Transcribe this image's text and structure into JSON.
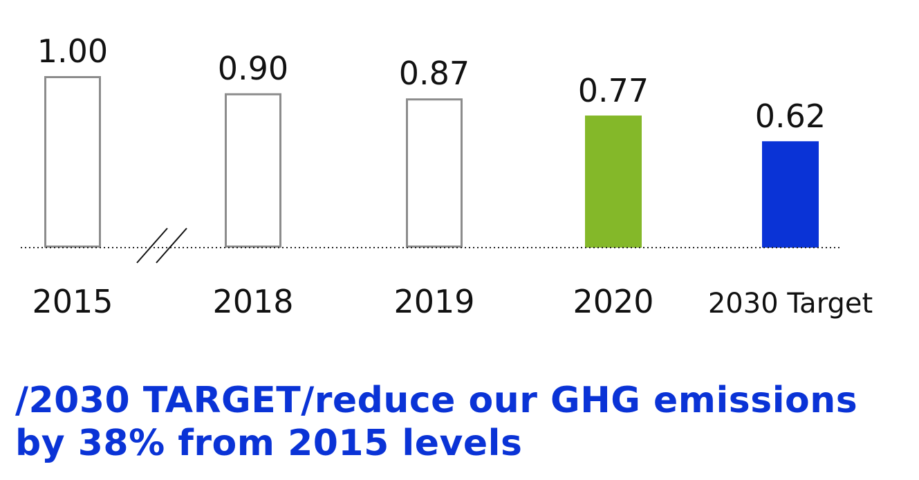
{
  "chart_data": {
    "type": "bar",
    "categories": [
      "2015",
      "2018",
      "2019",
      "2020",
      "2030 Target"
    ],
    "values": [
      1.0,
      0.9,
      0.87,
      0.77,
      0.62
    ],
    "value_labels": [
      "1.00",
      "0.90",
      "0.87",
      "0.77",
      "0.62"
    ],
    "bar_styles": [
      "outline",
      "outline",
      "outline",
      "filled",
      "filled"
    ],
    "bar_colors": [
      "#8c8c8c",
      "#8c8c8c",
      "#8c8c8c",
      "#84b829",
      "#0a33d6"
    ],
    "axis_break_after": "2015",
    "baseline_style": "dotted",
    "title": "",
    "xlabel": "",
    "ylabel": "",
    "ylim": [
      0,
      1.0
    ],
    "grid": false
  },
  "caption": {
    "line1": "/2030 TARGET/reduce our GHG emissions",
    "line2": "by 38% from 2015 levels"
  },
  "colors": {
    "accent": "#0a33d6",
    "outline": "#8c8c8c",
    "highlight": "#84b829",
    "text": "#111111"
  }
}
